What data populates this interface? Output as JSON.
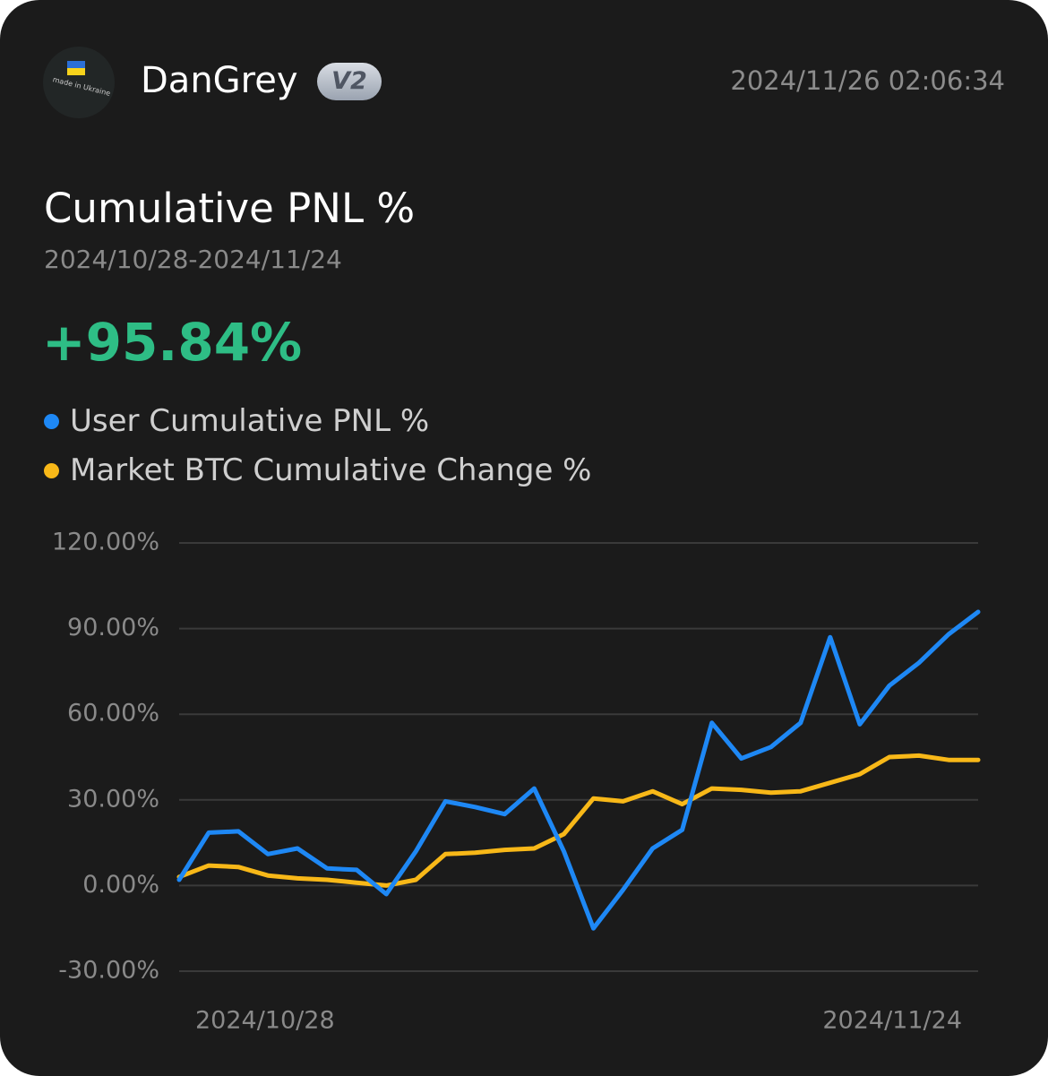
{
  "header": {
    "username": "DanGrey",
    "badge": "V2",
    "timestamp": "2024/11/26 02:06:34",
    "avatar_text": "made in Ukraine",
    "avatar_icon": "ukraine-flag-icon"
  },
  "summary": {
    "title": "Cumulative PNL %",
    "date_range": "2024/10/28-2024/11/24",
    "value": "+95.84%"
  },
  "colors": {
    "background": "#1b1b1b",
    "positive": "#2ebd85",
    "user_series": "#1e88f5",
    "market_series": "#f8b818",
    "grid": "#3a3a3a",
    "axis_text": "#8a8a8a"
  },
  "chart_data": {
    "type": "line",
    "title": "",
    "xlabel": "",
    "ylabel": "",
    "x": [
      "2024/10/28",
      "2024/10/29",
      "2024/10/30",
      "2024/10/31",
      "2024/11/01",
      "2024/11/02",
      "2024/11/03",
      "2024/11/04",
      "2024/11/05",
      "2024/11/06",
      "2024/11/07",
      "2024/11/08",
      "2024/11/09",
      "2024/11/10",
      "2024/11/11",
      "2024/11/12",
      "2024/11/13",
      "2024/11/14",
      "2024/11/15",
      "2024/11/16",
      "2024/11/17",
      "2024/11/18",
      "2024/11/19",
      "2024/11/20",
      "2024/11/21",
      "2024/11/22",
      "2024/11/23",
      "2024/11/24"
    ],
    "x_tick_labels": [
      "2024/10/28",
      "2024/11/24"
    ],
    "ylim": [
      -30,
      120
    ],
    "y_ticks": [
      120,
      90,
      60,
      30,
      0,
      -30
    ],
    "y_tick_labels": [
      "120.00%",
      "90.00%",
      "60.00%",
      "30.00%",
      "0.00%",
      "-30.00%"
    ],
    "grid": true,
    "legend_position": "top-left",
    "series": [
      {
        "name": "User Cumulative PNL %",
        "color": "#1e88f5",
        "values": [
          2,
          18.5,
          19,
          11,
          13,
          6,
          5.5,
          -3,
          12,
          29.5,
          27.5,
          25,
          34,
          12,
          -15,
          -1.5,
          13,
          19.5,
          57,
          44.5,
          48.5,
          57,
          87,
          56.5,
          70,
          78,
          88,
          95.84
        ]
      },
      {
        "name": "Market BTC Cumulative Change %",
        "color": "#f8b818",
        "values": [
          3,
          7,
          6.5,
          3.5,
          2.5,
          2,
          1,
          0,
          2,
          11,
          11.5,
          12.5,
          13,
          18,
          30.5,
          29.5,
          33,
          28.5,
          34,
          33.5,
          32.5,
          33,
          36,
          39,
          45,
          45.5,
          44,
          44
        ]
      }
    ]
  }
}
